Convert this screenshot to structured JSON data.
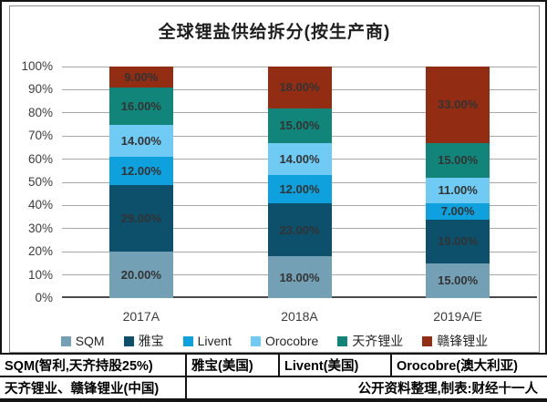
{
  "chart_data": {
    "type": "bar",
    "stacked": true,
    "title": "全球锂盐供给拆分(按生产商)",
    "categories": [
      "2017A",
      "2018A",
      "2019A/E"
    ],
    "series": [
      {
        "name": "SQM",
        "color": "#74a0b6",
        "values": [
          20,
          18,
          15
        ]
      },
      {
        "name": "雅宝",
        "color": "#0d506b",
        "values": [
          29,
          23,
          19
        ]
      },
      {
        "name": "Livent",
        "color": "#0ea1dd",
        "values": [
          12,
          12,
          7
        ]
      },
      {
        "name": "Orocobre",
        "color": "#6fcbf3",
        "values": [
          14,
          14,
          11
        ]
      },
      {
        "name": "天齐锂业",
        "color": "#12857a",
        "values": [
          16,
          15,
          15
        ]
      },
      {
        "name": "赣锋锂业",
        "color": "#922d13",
        "values": [
          9,
          18,
          33
        ]
      }
    ],
    "y_ticks": [
      "0%",
      "10%",
      "20%",
      "30%",
      "40%",
      "50%",
      "60%",
      "70%",
      "80%",
      "90%",
      "100%"
    ],
    "ylim": [
      0,
      100
    ],
    "grid": true,
    "legend_position": "bottom",
    "data_label_format": {
      "decimals": 2,
      "suffix": "%"
    },
    "grid_color": "#a8a8a8",
    "axis_color": "#4a4a4a",
    "data_label_color": "#333333"
  },
  "footer": {
    "row1": [
      "SQM(智利,天齐持股25%)",
      "雅宝(美国)",
      "Livent(美国)",
      "Orocobre(澳大利亚)"
    ],
    "row2_left": "天齐锂业、赣锋锂业(中国)",
    "row2_right": "公开资料整理,制表:财经十一人"
  }
}
